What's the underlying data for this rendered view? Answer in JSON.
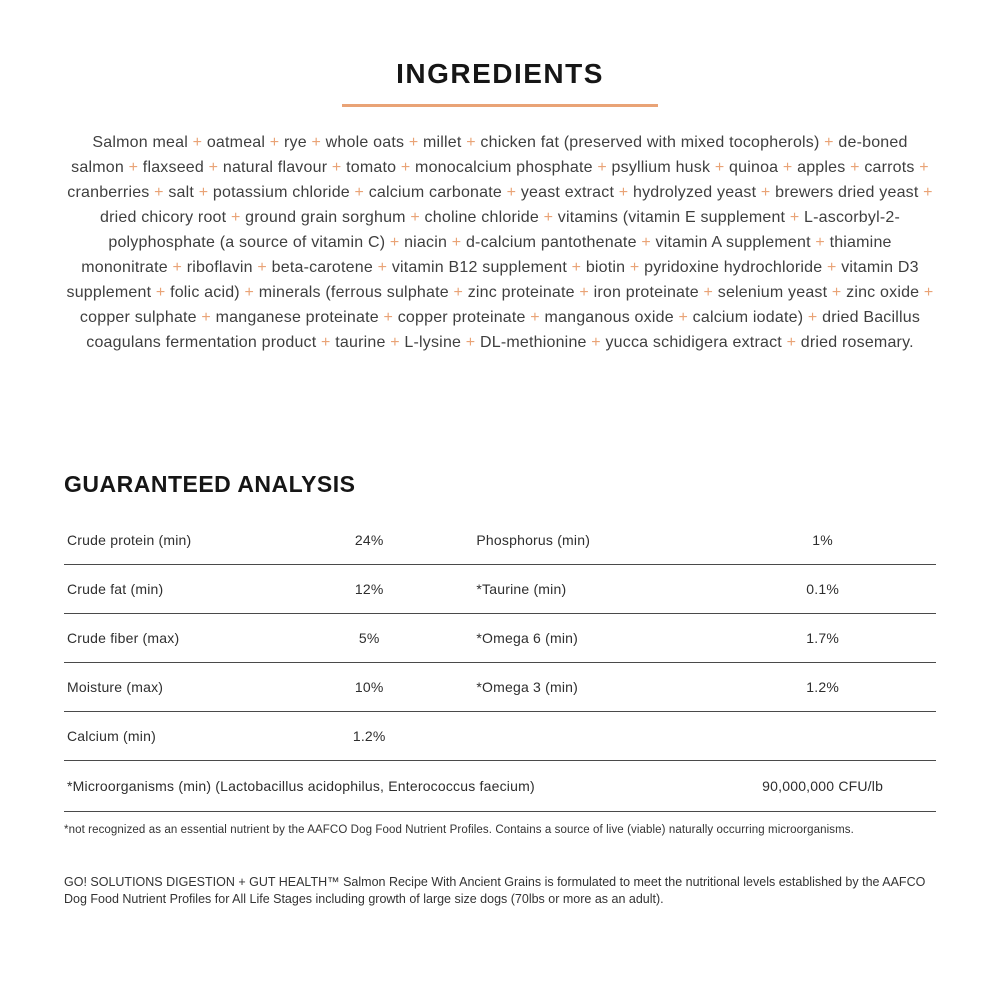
{
  "colors": {
    "accent_orange": "#E9A376",
    "heading_black": "#161616",
    "body_gray": "#3F3F3F"
  },
  "ingredients": {
    "heading": "INGREDIENTS",
    "separator": "+",
    "items": [
      "Salmon meal",
      "oatmeal",
      "rye",
      "whole oats",
      "millet",
      "chicken fat (preserved with mixed tocopherols)",
      "de-boned salmon",
      "flaxseed",
      "natural flavour",
      "tomato",
      "monocalcium phosphate",
      "psyllium husk",
      "quinoa",
      "apples",
      "carrots",
      "cranberries",
      "salt",
      "potassium chloride",
      "calcium carbonate",
      "yeast extract",
      "hydrolyzed yeast",
      "brewers dried yeast",
      "dried chicory root",
      "ground grain sorghum",
      "choline chloride",
      "vitamins (vitamin E supplement",
      "L-ascorbyl-2-polyphosphate (a source of vitamin C)",
      "niacin",
      "d-calcium pantothenate",
      "vitamin A supplement",
      "thiamine mononitrate",
      "riboflavin",
      "beta-carotene",
      "vitamin B12 supplement",
      "biotin",
      "pyridoxine hydrochloride",
      "vitamin D3 supplement",
      "folic acid)",
      "minerals (ferrous sulphate",
      "zinc proteinate",
      "iron proteinate",
      "selenium yeast",
      "zinc oxide",
      "copper sulphate",
      "manganese proteinate",
      "copper proteinate",
      "manganous oxide",
      "calcium iodate)",
      "dried Bacillus coagulans fermentation product",
      "taurine",
      "L-lysine",
      "DL-methionine",
      "yucca schidigera extract",
      "dried rosemary."
    ]
  },
  "analysis": {
    "heading": "GUARANTEED ANALYSIS",
    "rows": [
      {
        "left_label": "Crude protein (min)",
        "left_value": "24%",
        "right_label": "Phosphorus (min)",
        "right_value": "1%"
      },
      {
        "left_label": "Crude fat (min)",
        "left_value": "12%",
        "right_label": "*Taurine (min)",
        "right_value": "0.1%"
      },
      {
        "left_label": "Crude fiber (max)",
        "left_value": "5%",
        "right_label": "*Omega 6 (min)",
        "right_value": "1.7%"
      },
      {
        "left_label": "Moisture (max)",
        "left_value": "10%",
        "right_label": "*Omega 3 (min)",
        "right_value": "1.2%"
      },
      {
        "left_label": "Calcium (min)",
        "left_value": "1.2%",
        "right_label": "",
        "right_value": ""
      }
    ],
    "microorganisms_row": {
      "label": "*Microorganisms (min) (Lactobacillus acidophilus, Enterococcus faecium)",
      "value": "90,000,000 CFU/lb"
    },
    "footnote": "*not recognized as an essential nutrient by the AAFCO Dog Food Nutrient Profiles. Contains a source of live (viable) naturally occurring microorganisms.",
    "statement": "GO! SOLUTIONS DIGESTION + GUT HEALTH™ Salmon Recipe With Ancient Grains is formulated to meet the nutritional levels established by the AAFCO Dog Food Nutrient Profiles for All Life Stages including growth of large size dogs (70lbs or more as an adult)."
  }
}
